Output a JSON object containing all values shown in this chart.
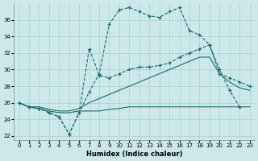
{
  "xlabel": "Humidex (Indice chaleur)",
  "bg_color": "#cce8ea",
  "grid_color": "#aacfd2",
  "line_color": "#1a6b6b",
  "xlim": [
    -0.5,
    23.5
  ],
  "ylim": [
    21.5,
    38.0
  ],
  "yticks": [
    22,
    24,
    26,
    28,
    30,
    32,
    34,
    36
  ],
  "xticks": [
    0,
    1,
    2,
    3,
    4,
    5,
    6,
    7,
    8,
    9,
    10,
    11,
    12,
    13,
    14,
    15,
    16,
    17,
    18,
    19,
    20,
    21,
    22,
    23
  ],
  "curve1_x": [
    0,
    1,
    2,
    3,
    4,
    5,
    6,
    7,
    8,
    9,
    10,
    11,
    12,
    13,
    14,
    15,
    16,
    17,
    18,
    19,
    20,
    21,
    22
  ],
  "curve1_y": [
    26.0,
    25.5,
    25.3,
    24.8,
    24.3,
    22.2,
    24.8,
    27.3,
    29.5,
    35.5,
    37.2,
    37.5,
    37.0,
    36.5,
    36.3,
    37.0,
    37.5,
    34.7,
    34.2,
    33.0,
    30.0,
    27.5,
    25.5
  ],
  "curve2_x": [
    0,
    1,
    2,
    3,
    4,
    5,
    6,
    7,
    8,
    9,
    10,
    11,
    12,
    13,
    14,
    15,
    16,
    17,
    18,
    19,
    20,
    21,
    22,
    23
  ],
  "curve2_y": [
    26.0,
    25.5,
    25.3,
    24.8,
    24.3,
    22.2,
    24.8,
    32.5,
    29.3,
    29.0,
    29.5,
    30.0,
    30.3,
    30.3,
    30.5,
    30.8,
    31.5,
    32.0,
    32.5,
    33.0,
    29.5,
    29.0,
    28.5,
    28.0
  ],
  "curve3_x": [
    0,
    1,
    2,
    3,
    4,
    5,
    6,
    7,
    8,
    9,
    10,
    11,
    12,
    13,
    14,
    15,
    16,
    17,
    18,
    19,
    20,
    21,
    22,
    23
  ],
  "curve3_y": [
    26.0,
    25.5,
    25.3,
    25.0,
    24.8,
    24.8,
    25.0,
    25.0,
    25.0,
    25.2,
    25.3,
    25.5,
    25.5,
    25.5,
    25.5,
    25.5,
    25.5,
    25.5,
    25.5,
    25.5,
    25.5,
    25.5,
    25.5,
    25.5
  ],
  "curve4_x": [
    0,
    1,
    2,
    3,
    4,
    5,
    6,
    7,
    8,
    9,
    10,
    11,
    12,
    13,
    14,
    15,
    16,
    17,
    18,
    19,
    20,
    21,
    22,
    23
  ],
  "curve4_y": [
    26.0,
    25.5,
    25.5,
    25.2,
    25.0,
    25.0,
    25.3,
    26.0,
    26.5,
    27.0,
    27.5,
    28.0,
    28.5,
    29.0,
    29.5,
    30.0,
    30.5,
    31.0,
    31.5,
    31.5,
    29.5,
    28.5,
    27.8,
    27.5
  ]
}
